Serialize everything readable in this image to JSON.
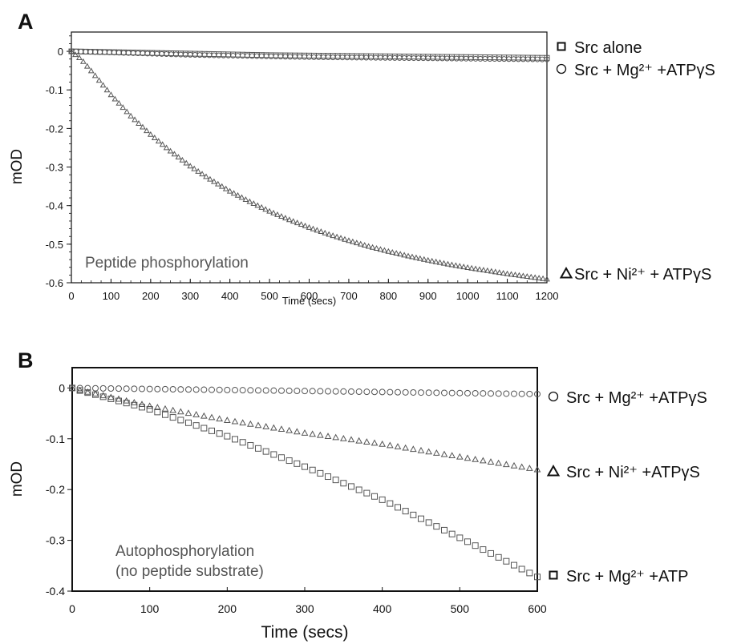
{
  "panels": [
    {
      "letter": "A",
      "annotation": [
        "Peptide phosphorylation"
      ],
      "legend": [
        {
          "marker": "square",
          "text": "Src alone"
        },
        {
          "marker": "circle",
          "text": "Src + Mg²⁺ +ATPγS"
        },
        {
          "marker": "triangle",
          "text": "Src + Ni²⁺ + ATPγS"
        }
      ]
    },
    {
      "letter": "B",
      "annotation": [
        "Autophosphorylation",
        "(no peptide substrate)"
      ],
      "legend": [
        {
          "marker": "circle",
          "text": "Src + Mg²⁺ +ATPγS"
        },
        {
          "marker": "triangle",
          "text": "Src + Ni²⁺ +ATPγS"
        },
        {
          "marker": "square",
          "text": "Src + Mg²⁺ +ATP"
        }
      ]
    }
  ],
  "chart_data": [
    {
      "type": "scatter",
      "xlabel": "Time (secs)",
      "ylabel": "mOD",
      "xlim": [
        0,
        1200
      ],
      "ylim": [
        -0.6,
        0.05
      ],
      "xticks": [
        0,
        100,
        200,
        300,
        400,
        500,
        600,
        700,
        800,
        900,
        1000,
        1100,
        1200
      ],
      "yticks": [
        0,
        -0.1,
        -0.2,
        -0.3,
        -0.4,
        -0.5,
        -0.6
      ],
      "xticklabels": [
        "0",
        "100",
        "200",
        "300",
        "400",
        "500",
        "600",
        "700",
        "800",
        "900",
        "1000",
        "1100",
        "1200"
      ],
      "yticklabels": [
        "0",
        "-0.1",
        "-0.2",
        "-0.3",
        "-0.4",
        "-0.5",
        "-0.6"
      ],
      "series": [
        {
          "name": "Src alone",
          "marker": "square",
          "x": [
            0,
            100,
            200,
            300,
            400,
            500,
            600,
            700,
            800,
            900,
            1000,
            1100,
            1200
          ],
          "y": [
            0,
            -0.002,
            -0.004,
            -0.006,
            -0.008,
            -0.01,
            -0.011,
            -0.012,
            -0.013,
            -0.014,
            -0.015,
            -0.016,
            -0.017
          ]
        },
        {
          "name": "Src + Mg²⁺ +ATPγS",
          "marker": "circle",
          "x": [
            0,
            100,
            200,
            300,
            400,
            500,
            600,
            700,
            800,
            900,
            1000,
            1100,
            1200
          ],
          "y": [
            0,
            -0.003,
            -0.006,
            -0.009,
            -0.011,
            -0.013,
            -0.015,
            -0.016,
            -0.017,
            -0.018,
            -0.019,
            -0.02,
            -0.021
          ]
        },
        {
          "name": "Src + Ni²⁺ + ATPγS",
          "marker": "triangle",
          "x": [
            0,
            25,
            50,
            100,
            150,
            200,
            250,
            300,
            350,
            400,
            450,
            500,
            550,
            600,
            650,
            700,
            750,
            800,
            850,
            900,
            950,
            1000,
            1050,
            1100,
            1150,
            1200
          ],
          "y": [
            0,
            -0.02,
            -0.05,
            -0.112,
            -0.167,
            -0.215,
            -0.258,
            -0.297,
            -0.331,
            -0.362,
            -0.389,
            -0.414,
            -0.436,
            -0.456,
            -0.474,
            -0.49,
            -0.505,
            -0.518,
            -0.53,
            -0.541,
            -0.551,
            -0.56,
            -0.568,
            -0.576,
            -0.583,
            -0.59
          ]
        }
      ]
    },
    {
      "type": "scatter",
      "xlabel": "Time (secs)",
      "ylabel": "mOD",
      "xlim": [
        0,
        600
      ],
      "ylim": [
        -0.4,
        0.04
      ],
      "xticks": [
        0,
        100,
        200,
        300,
        400,
        500,
        600
      ],
      "yticks": [
        0,
        -0.1,
        -0.2,
        -0.3,
        -0.4
      ],
      "xticklabels": [
        "0",
        "100",
        "200",
        "300",
        "400",
        "500",
        "600"
      ],
      "yticklabels": [
        "0",
        "-0.1",
        "-0.2",
        "-0.3",
        "-0.4"
      ],
      "series": [
        {
          "name": "Src + Mg²⁺ +ATPγS",
          "marker": "circle",
          "x": [
            0,
            100,
            200,
            300,
            400,
            500,
            600
          ],
          "y": [
            0,
            -0.002,
            -0.004,
            -0.006,
            -0.008,
            -0.01,
            -0.012
          ]
        },
        {
          "name": "Src + Ni²⁺ +ATPγS",
          "marker": "triangle",
          "x": [
            0,
            10,
            100,
            200,
            300,
            400,
            500,
            600
          ],
          "y": [
            0,
            -0.004,
            -0.035,
            -0.063,
            -0.088,
            -0.11,
            -0.135,
            -0.16
          ]
        },
        {
          "name": "Src + Mg²⁺ +ATP",
          "marker": "square",
          "x": [
            0,
            10,
            100,
            200,
            300,
            400,
            500,
            600
          ],
          "y": [
            0,
            -0.005,
            -0.042,
            -0.095,
            -0.155,
            -0.22,
            -0.295,
            -0.372
          ]
        }
      ]
    }
  ]
}
